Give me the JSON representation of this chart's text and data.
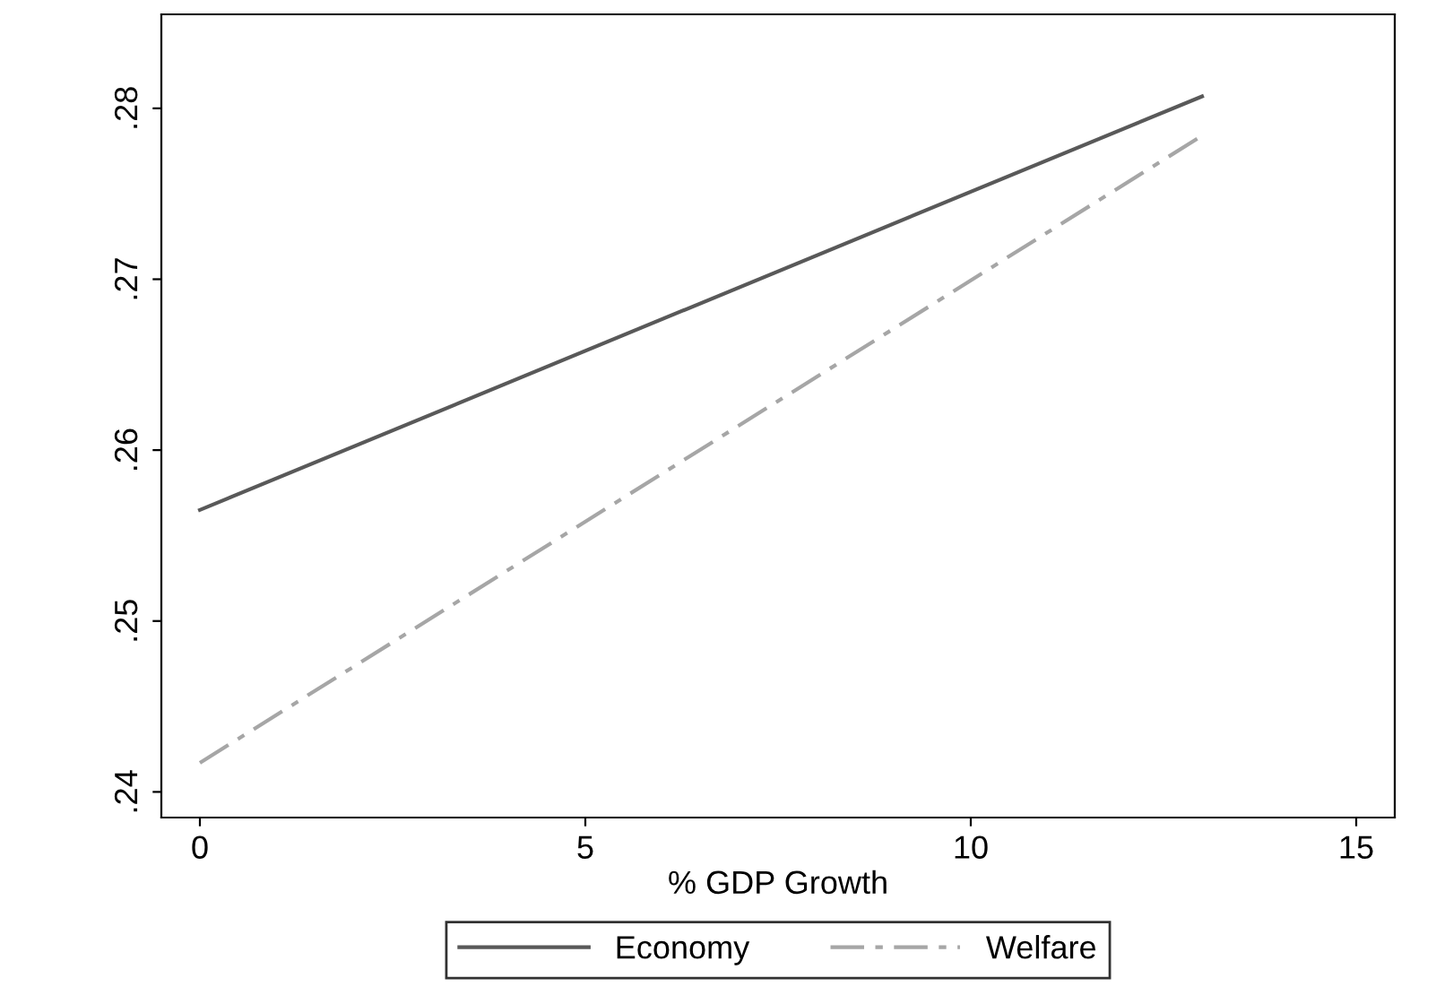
{
  "chart_data": {
    "type": "line",
    "xlabel": "% GDP Growth",
    "x": [
      0,
      13
    ],
    "series": [
      {
        "name": "Economy",
        "color": "#595959",
        "line_style": "solid",
        "values": [
          0.2565,
          0.2807
        ]
      },
      {
        "name": "Welfare",
        "color": "#a6a6a6",
        "line_style": "dashed",
        "values": [
          0.2417,
          0.2784
        ]
      }
    ],
    "xlim": [
      -0.5,
      15.5
    ],
    "ylim": [
      0.2385,
      0.2855
    ],
    "xticks": [
      0,
      5,
      10,
      15
    ],
    "yticks": [
      {
        "value": 0.24,
        "label": ".24"
      },
      {
        "value": 0.25,
        "label": ".25"
      },
      {
        "value": 0.26,
        "label": ".26"
      },
      {
        "value": 0.27,
        "label": ".27"
      },
      {
        "value": 0.28,
        "label": ".28"
      }
    ],
    "grid": false,
    "legend": "bottom",
    "marker": "none"
  }
}
